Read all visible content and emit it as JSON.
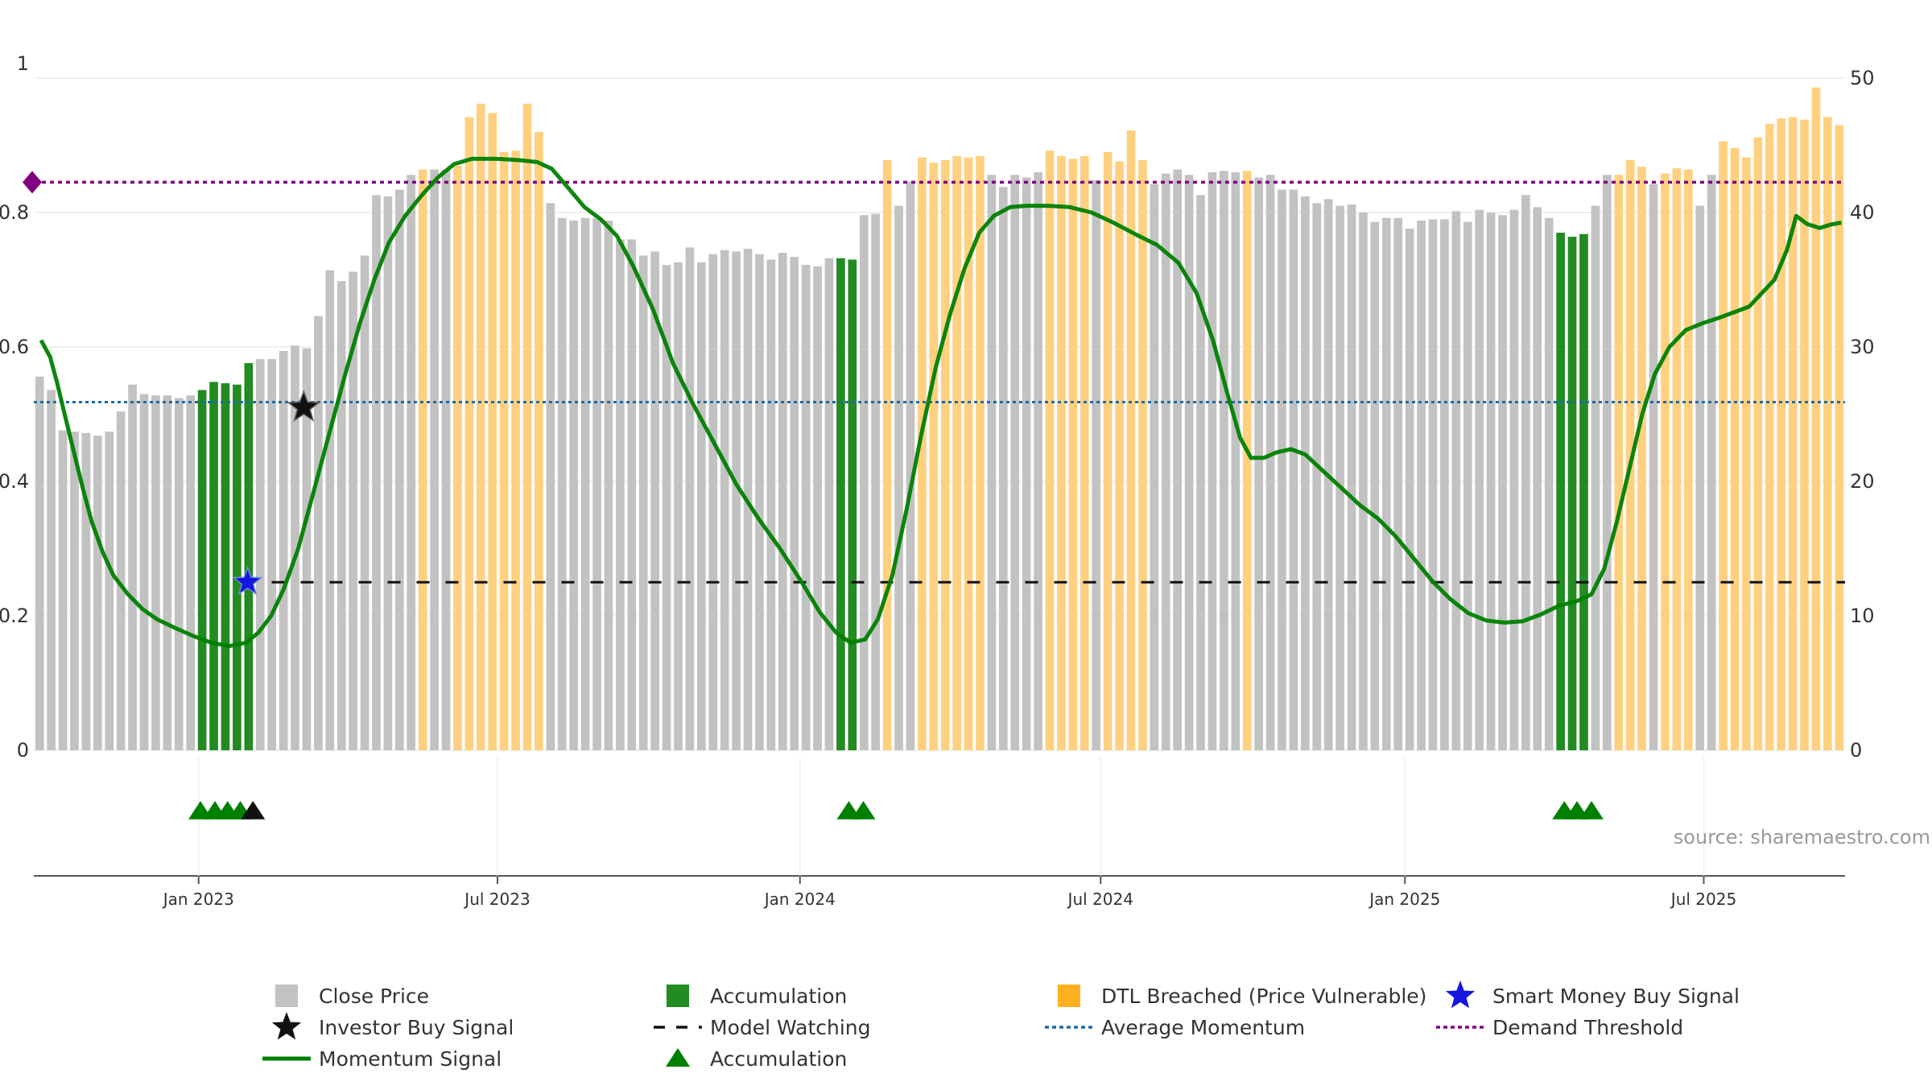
{
  "chart_data": {
    "type": "bar",
    "x_tick_labels": [
      "Jan 2023",
      "Jul 2023",
      "Jan 2024",
      "Jul 2024",
      "Jan 2025",
      "Jul 2025"
    ],
    "left_axis": {
      "ticks": [
        "0",
        "0.2",
        "0.4",
        "0.6",
        "0.8",
        "1"
      ],
      "ylim": [
        0,
        1
      ]
    },
    "right_axis": {
      "ticks": [
        "0",
        "10",
        "20",
        "30",
        "40",
        "50"
      ],
      "ylim": [
        0,
        50
      ]
    },
    "bar_colors": {
      "close": "#c2c2c2",
      "accumulation": "#228b22",
      "dtl": "#ffd080"
    },
    "close_price_bars": [
      {
        "v": 27.8,
        "t": "c"
      },
      {
        "v": 26.8,
        "t": "c"
      },
      {
        "v": 23.8,
        "t": "c"
      },
      {
        "v": 23.7,
        "t": "c"
      },
      {
        "v": 23.6,
        "t": "c"
      },
      {
        "v": 23.4,
        "t": "c"
      },
      {
        "v": 23.7,
        "t": "c"
      },
      {
        "v": 25.2,
        "t": "c"
      },
      {
        "v": 27.2,
        "t": "c"
      },
      {
        "v": 26.5,
        "t": "c"
      },
      {
        "v": 26.4,
        "t": "c"
      },
      {
        "v": 26.4,
        "t": "c"
      },
      {
        "v": 26.2,
        "t": "c"
      },
      {
        "v": 26.4,
        "t": "c"
      },
      {
        "v": 26.8,
        "t": "a"
      },
      {
        "v": 27.4,
        "t": "a"
      },
      {
        "v": 27.3,
        "t": "a"
      },
      {
        "v": 27.2,
        "t": "a"
      },
      {
        "v": 28.8,
        "t": "a"
      },
      {
        "v": 29.1,
        "t": "c"
      },
      {
        "v": 29.1,
        "t": "c"
      },
      {
        "v": 29.7,
        "t": "c"
      },
      {
        "v": 30.1,
        "t": "c"
      },
      {
        "v": 29.9,
        "t": "c"
      },
      {
        "v": 32.3,
        "t": "c"
      },
      {
        "v": 35.7,
        "t": "c"
      },
      {
        "v": 34.9,
        "t": "c"
      },
      {
        "v": 35.6,
        "t": "c"
      },
      {
        "v": 36.8,
        "t": "c"
      },
      {
        "v": 41.3,
        "t": "c"
      },
      {
        "v": 41.2,
        "t": "c"
      },
      {
        "v": 41.7,
        "t": "c"
      },
      {
        "v": 42.8,
        "t": "c"
      },
      {
        "v": 43.2,
        "t": "d"
      },
      {
        "v": 43.2,
        "t": "c"
      },
      {
        "v": 43.2,
        "t": "c"
      },
      {
        "v": 43.5,
        "t": "d"
      },
      {
        "v": 47.1,
        "t": "d"
      },
      {
        "v": 48.1,
        "t": "d"
      },
      {
        "v": 47.4,
        "t": "d"
      },
      {
        "v": 44.5,
        "t": "d"
      },
      {
        "v": 44.6,
        "t": "d"
      },
      {
        "v": 48.1,
        "t": "d"
      },
      {
        "v": 46.0,
        "t": "d"
      },
      {
        "v": 40.7,
        "t": "c"
      },
      {
        "v": 39.6,
        "t": "c"
      },
      {
        "v": 39.4,
        "t": "c"
      },
      {
        "v": 39.6,
        "t": "c"
      },
      {
        "v": 39.6,
        "t": "c"
      },
      {
        "v": 39.4,
        "t": "c"
      },
      {
        "v": 38.0,
        "t": "c"
      },
      {
        "v": 38.0,
        "t": "c"
      },
      {
        "v": 36.8,
        "t": "c"
      },
      {
        "v": 37.1,
        "t": "c"
      },
      {
        "v": 36.1,
        "t": "c"
      },
      {
        "v": 36.3,
        "t": "c"
      },
      {
        "v": 37.4,
        "t": "c"
      },
      {
        "v": 36.3,
        "t": "c"
      },
      {
        "v": 36.9,
        "t": "c"
      },
      {
        "v": 37.2,
        "t": "c"
      },
      {
        "v": 37.1,
        "t": "c"
      },
      {
        "v": 37.3,
        "t": "c"
      },
      {
        "v": 36.9,
        "t": "c"
      },
      {
        "v": 36.5,
        "t": "c"
      },
      {
        "v": 37.0,
        "t": "c"
      },
      {
        "v": 36.7,
        "t": "c"
      },
      {
        "v": 36.1,
        "t": "c"
      },
      {
        "v": 36.0,
        "t": "c"
      },
      {
        "v": 36.6,
        "t": "c"
      },
      {
        "v": 36.6,
        "t": "a"
      },
      {
        "v": 36.5,
        "t": "a"
      },
      {
        "v": 39.8,
        "t": "c"
      },
      {
        "v": 39.9,
        "t": "c"
      },
      {
        "v": 43.9,
        "t": "d"
      },
      {
        "v": 40.5,
        "t": "c"
      },
      {
        "v": 42.3,
        "t": "c"
      },
      {
        "v": 44.1,
        "t": "d"
      },
      {
        "v": 43.7,
        "t": "d"
      },
      {
        "v": 43.9,
        "t": "d"
      },
      {
        "v": 44.2,
        "t": "d"
      },
      {
        "v": 44.1,
        "t": "d"
      },
      {
        "v": 44.2,
        "t": "d"
      },
      {
        "v": 42.8,
        "t": "c"
      },
      {
        "v": 41.9,
        "t": "c"
      },
      {
        "v": 42.8,
        "t": "c"
      },
      {
        "v": 42.6,
        "t": "c"
      },
      {
        "v": 43.0,
        "t": "c"
      },
      {
        "v": 44.6,
        "t": "d"
      },
      {
        "v": 44.2,
        "t": "d"
      },
      {
        "v": 44.0,
        "t": "d"
      },
      {
        "v": 44.2,
        "t": "d"
      },
      {
        "v": 42.4,
        "t": "c"
      },
      {
        "v": 44.5,
        "t": "d"
      },
      {
        "v": 43.8,
        "t": "d"
      },
      {
        "v": 46.1,
        "t": "d"
      },
      {
        "v": 43.9,
        "t": "d"
      },
      {
        "v": 42.1,
        "t": "c"
      },
      {
        "v": 42.9,
        "t": "c"
      },
      {
        "v": 43.2,
        "t": "c"
      },
      {
        "v": 42.8,
        "t": "c"
      },
      {
        "v": 41.3,
        "t": "c"
      },
      {
        "v": 43.0,
        "t": "c"
      },
      {
        "v": 43.1,
        "t": "c"
      },
      {
        "v": 43.0,
        "t": "c"
      },
      {
        "v": 43.1,
        "t": "d"
      },
      {
        "v": 42.6,
        "t": "c"
      },
      {
        "v": 42.8,
        "t": "c"
      },
      {
        "v": 41.7,
        "t": "c"
      },
      {
        "v": 41.7,
        "t": "c"
      },
      {
        "v": 41.2,
        "t": "c"
      },
      {
        "v": 40.7,
        "t": "c"
      },
      {
        "v": 41.0,
        "t": "c"
      },
      {
        "v": 40.5,
        "t": "c"
      },
      {
        "v": 40.6,
        "t": "c"
      },
      {
        "v": 40.0,
        "t": "c"
      },
      {
        "v": 39.3,
        "t": "c"
      },
      {
        "v": 39.6,
        "t": "c"
      },
      {
        "v": 39.6,
        "t": "c"
      },
      {
        "v": 38.8,
        "t": "c"
      },
      {
        "v": 39.4,
        "t": "c"
      },
      {
        "v": 39.5,
        "t": "c"
      },
      {
        "v": 39.5,
        "t": "c"
      },
      {
        "v": 40.1,
        "t": "c"
      },
      {
        "v": 39.3,
        "t": "c"
      },
      {
        "v": 40.2,
        "t": "c"
      },
      {
        "v": 40.0,
        "t": "c"
      },
      {
        "v": 39.8,
        "t": "c"
      },
      {
        "v": 40.2,
        "t": "c"
      },
      {
        "v": 41.3,
        "t": "c"
      },
      {
        "v": 40.4,
        "t": "c"
      },
      {
        "v": 39.6,
        "t": "c"
      },
      {
        "v": 38.5,
        "t": "a"
      },
      {
        "v": 38.2,
        "t": "a"
      },
      {
        "v": 38.4,
        "t": "a"
      },
      {
        "v": 40.5,
        "t": "c"
      },
      {
        "v": 42.8,
        "t": "c"
      },
      {
        "v": 42.8,
        "t": "d"
      },
      {
        "v": 43.9,
        "t": "d"
      },
      {
        "v": 43.4,
        "t": "d"
      },
      {
        "v": 42.1,
        "t": "c"
      },
      {
        "v": 42.9,
        "t": "d"
      },
      {
        "v": 43.3,
        "t": "d"
      },
      {
        "v": 43.2,
        "t": "d"
      },
      {
        "v": 40.5,
        "t": "c"
      },
      {
        "v": 42.8,
        "t": "c"
      },
      {
        "v": 45.3,
        "t": "d"
      },
      {
        "v": 44.8,
        "t": "d"
      },
      {
        "v": 44.1,
        "t": "d"
      },
      {
        "v": 45.6,
        "t": "d"
      },
      {
        "v": 46.6,
        "t": "d"
      },
      {
        "v": 47.0,
        "t": "d"
      },
      {
        "v": 47.1,
        "t": "d"
      },
      {
        "v": 46.9,
        "t": "d"
      },
      {
        "v": 49.3,
        "t": "d"
      },
      {
        "v": 47.1,
        "t": "d"
      },
      {
        "v": 46.5,
        "t": "d"
      }
    ],
    "momentum_signal": [
      {
        "x": 0.004,
        "y": 0.61
      },
      {
        "x": 0.009,
        "y": 0.585
      },
      {
        "x": 0.013,
        "y": 0.545
      },
      {
        "x": 0.017,
        "y": 0.5
      },
      {
        "x": 0.022,
        "y": 0.445
      },
      {
        "x": 0.027,
        "y": 0.39
      },
      {
        "x": 0.032,
        "y": 0.34
      },
      {
        "x": 0.038,
        "y": 0.295
      },
      {
        "x": 0.044,
        "y": 0.26
      },
      {
        "x": 0.052,
        "y": 0.232
      },
      {
        "x": 0.06,
        "y": 0.21
      },
      {
        "x": 0.068,
        "y": 0.195
      },
      {
        "x": 0.078,
        "y": 0.182
      },
      {
        "x": 0.088,
        "y": 0.17
      },
      {
        "x": 0.098,
        "y": 0.16
      },
      {
        "x": 0.108,
        "y": 0.155
      },
      {
        "x": 0.117,
        "y": 0.16
      },
      {
        "x": 0.124,
        "y": 0.175
      },
      {
        "x": 0.131,
        "y": 0.2
      },
      {
        "x": 0.138,
        "y": 0.24
      },
      {
        "x": 0.146,
        "y": 0.3
      },
      {
        "x": 0.155,
        "y": 0.39
      },
      {
        "x": 0.164,
        "y": 0.48
      },
      {
        "x": 0.172,
        "y": 0.56
      },
      {
        "x": 0.18,
        "y": 0.635
      },
      {
        "x": 0.188,
        "y": 0.7
      },
      {
        "x": 0.196,
        "y": 0.755
      },
      {
        "x": 0.205,
        "y": 0.795
      },
      {
        "x": 0.214,
        "y": 0.825
      },
      {
        "x": 0.223,
        "y": 0.852
      },
      {
        "x": 0.232,
        "y": 0.872
      },
      {
        "x": 0.242,
        "y": 0.88
      },
      {
        "x": 0.255,
        "y": 0.88
      },
      {
        "x": 0.268,
        "y": 0.878
      },
      {
        "x": 0.278,
        "y": 0.875
      },
      {
        "x": 0.286,
        "y": 0.865
      },
      {
        "x": 0.294,
        "y": 0.84
      },
      {
        "x": 0.304,
        "y": 0.808
      },
      {
        "x": 0.313,
        "y": 0.79
      },
      {
        "x": 0.322,
        "y": 0.765
      },
      {
        "x": 0.331,
        "y": 0.72
      },
      {
        "x": 0.342,
        "y": 0.655
      },
      {
        "x": 0.353,
        "y": 0.575
      },
      {
        "x": 0.364,
        "y": 0.515
      },
      {
        "x": 0.376,
        "y": 0.455
      },
      {
        "x": 0.388,
        "y": 0.395
      },
      {
        "x": 0.4,
        "y": 0.345
      },
      {
        "x": 0.412,
        "y": 0.3
      },
      {
        "x": 0.424,
        "y": 0.25
      },
      {
        "x": 0.434,
        "y": 0.205
      },
      {
        "x": 0.443,
        "y": 0.175
      },
      {
        "x": 0.451,
        "y": 0.16
      },
      {
        "x": 0.459,
        "y": 0.165
      },
      {
        "x": 0.466,
        "y": 0.195
      },
      {
        "x": 0.474,
        "y": 0.26
      },
      {
        "x": 0.482,
        "y": 0.36
      },
      {
        "x": 0.49,
        "y": 0.47
      },
      {
        "x": 0.498,
        "y": 0.57
      },
      {
        "x": 0.506,
        "y": 0.65
      },
      {
        "x": 0.514,
        "y": 0.718
      },
      {
        "x": 0.522,
        "y": 0.77
      },
      {
        "x": 0.53,
        "y": 0.795
      },
      {
        "x": 0.539,
        "y": 0.808
      },
      {
        "x": 0.548,
        "y": 0.81
      },
      {
        "x": 0.56,
        "y": 0.81
      },
      {
        "x": 0.572,
        "y": 0.808
      },
      {
        "x": 0.584,
        "y": 0.8
      },
      {
        "x": 0.596,
        "y": 0.785
      },
      {
        "x": 0.608,
        "y": 0.768
      },
      {
        "x": 0.62,
        "y": 0.752
      },
      {
        "x": 0.632,
        "y": 0.725
      },
      {
        "x": 0.642,
        "y": 0.68
      },
      {
        "x": 0.651,
        "y": 0.61
      },
      {
        "x": 0.659,
        "y": 0.53
      },
      {
        "x": 0.666,
        "y": 0.465
      },
      {
        "x": 0.672,
        "y": 0.435
      },
      {
        "x": 0.679,
        "y": 0.435
      },
      {
        "x": 0.686,
        "y": 0.443
      },
      {
        "x": 0.694,
        "y": 0.448
      },
      {
        "x": 0.702,
        "y": 0.44
      },
      {
        "x": 0.712,
        "y": 0.415
      },
      {
        "x": 0.722,
        "y": 0.39
      },
      {
        "x": 0.732,
        "y": 0.365
      },
      {
        "x": 0.742,
        "y": 0.345
      },
      {
        "x": 0.752,
        "y": 0.318
      },
      {
        "x": 0.762,
        "y": 0.285
      },
      {
        "x": 0.772,
        "y": 0.252
      },
      {
        "x": 0.782,
        "y": 0.225
      },
      {
        "x": 0.792,
        "y": 0.204
      },
      {
        "x": 0.802,
        "y": 0.193
      },
      {
        "x": 0.812,
        "y": 0.19
      },
      {
        "x": 0.822,
        "y": 0.192
      },
      {
        "x": 0.832,
        "y": 0.202
      },
      {
        "x": 0.842,
        "y": 0.215
      },
      {
        "x": 0.852,
        "y": 0.222
      },
      {
        "x": 0.86,
        "y": 0.232
      },
      {
        "x": 0.867,
        "y": 0.27
      },
      {
        "x": 0.874,
        "y": 0.34
      },
      {
        "x": 0.881,
        "y": 0.42
      },
      {
        "x": 0.888,
        "y": 0.5
      },
      {
        "x": 0.895,
        "y": 0.56
      },
      {
        "x": 0.903,
        "y": 0.6
      },
      {
        "x": 0.912,
        "y": 0.625
      },
      {
        "x": 0.921,
        "y": 0.635
      },
      {
        "x": 0.93,
        "y": 0.643
      },
      {
        "x": 0.939,
        "y": 0.652
      },
      {
        "x": 0.947,
        "y": 0.66
      },
      {
        "x": 0.954,
        "y": 0.68
      },
      {
        "x": 0.961,
        "y": 0.7
      },
      {
        "x": 0.968,
        "y": 0.745
      },
      {
        "x": 0.973,
        "y": 0.795
      },
      {
        "x": 0.979,
        "y": 0.783
      },
      {
        "x": 0.986,
        "y": 0.777
      },
      {
        "x": 0.992,
        "y": 0.782
      },
      {
        "x": 0.998,
        "y": 0.785
      }
    ],
    "average_momentum": 0.518,
    "demand_threshold": 0.845,
    "model_watching": 0.25,
    "investor_buy_signal": {
      "x": 0.149,
      "y": 0.51
    },
    "smart_money_buy_signal": {
      "x": 0.118,
      "y": 0.25
    },
    "accumulation_marker_groups": [
      [
        0.092,
        0.1,
        0.107,
        0.114
      ],
      [
        0.45,
        0.458
      ],
      [
        0.845,
        0.852,
        0.86
      ]
    ],
    "investor_marker_x": 0.121,
    "source_text": "source: sharemaestro.com",
    "legend": {
      "close_price": "Close Price",
      "accumulation": "Accumulation",
      "dtl_breached": "DTL Breached (Price Vulnerable)",
      "smart_money": "Smart Money Buy Signal",
      "investor_buy": "Investor Buy Signal",
      "model_watching": "Model Watching",
      "average_momentum": "Average Momentum",
      "demand_threshold": "Demand Threshold",
      "momentum_signal": "Momentum Signal",
      "accumulation_marker": "Accumulation"
    },
    "colors": {
      "momentum": "#008000",
      "average_momentum": "#1f6aa5",
      "demand_threshold": "#800080",
      "model_watching": "#111111",
      "smart_money": "#1515e0",
      "investor": "#111111",
      "marker_green": "#008000"
    }
  }
}
